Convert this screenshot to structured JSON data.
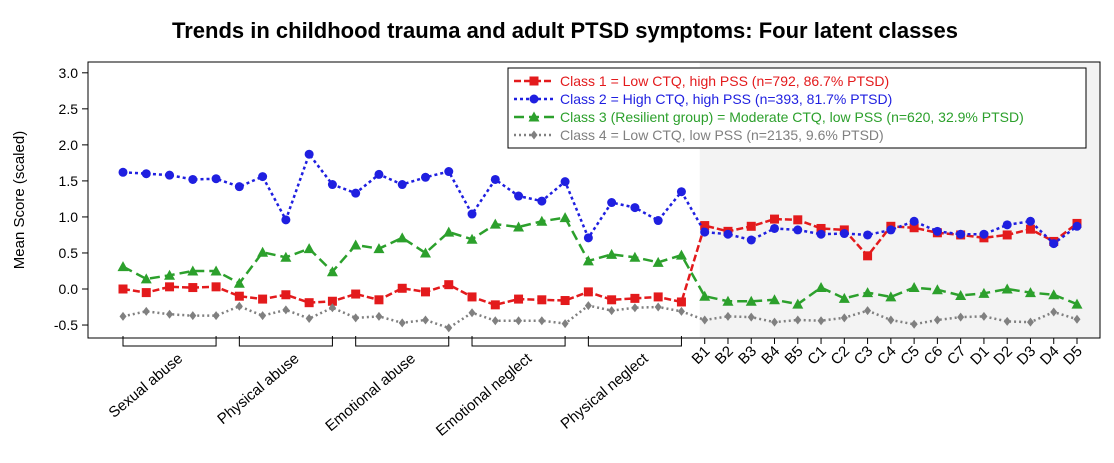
{
  "chart_data": {
    "type": "line",
    "title": "Trends in childhood trauma and adult PTSD symptoms: Four latent classes",
    "y_label": "Mean Score (scaled)",
    "categories": [
      null,
      null,
      null,
      null,
      null,
      null,
      null,
      null,
      null,
      null,
      null,
      null,
      null,
      null,
      null,
      null,
      null,
      null,
      null,
      null,
      null,
      null,
      null,
      null,
      null,
      "B1",
      "B2",
      "B3",
      "B4",
      "B5",
      "C1",
      "C2",
      "C3",
      "C4",
      "C5",
      "C6",
      "C7",
      "D1",
      "D2",
      "D3",
      "D4",
      "D5"
    ],
    "groups": [
      "Sexual abuse",
      "Physical abuse",
      "Emotional abuse",
      "Emotional neglect",
      "Physical neglect"
    ],
    "ylim": [
      -0.68,
      3.15
    ],
    "yticks": [
      -0.5,
      {
        "value": 0,
        "label": "0.0"
      },
      0.5,
      {
        "value": 1,
        "label": "1.0"
      },
      1.5,
      {
        "value": 2,
        "label": "2.0"
      },
      2.5,
      {
        "value": 3,
        "label": "3.0"
      }
    ],
    "legend": "top-right",
    "series": [
      {
        "name": "Class 1 = Low CTQ, high PSS (n=792, 86.7% PTSD)",
        "color": "#e31a1c",
        "marker": "square",
        "dash": "7,3",
        "values": [
          0.0,
          -0.05,
          0.03,
          0.02,
          0.03,
          -0.1,
          -0.14,
          -0.08,
          -0.19,
          -0.17,
          -0.07,
          -0.15,
          0.01,
          -0.04,
          0.06,
          -0.11,
          -0.22,
          -0.14,
          -0.15,
          -0.16,
          -0.04,
          -0.15,
          -0.13,
          -0.11,
          -0.18,
          0.88,
          0.8,
          0.87,
          0.97,
          0.96,
          0.84,
          0.82,
          0.46,
          0.87,
          0.85,
          0.78,
          0.75,
          0.71,
          0.75,
          0.83,
          0.66,
          0.91
        ]
      },
      {
        "name": "Class 2 = High CTQ, high PSS (n=393, 81.7% PTSD)",
        "color": "#1f1fe0",
        "marker": "circle",
        "dash": "3,3",
        "values": [
          1.62,
          1.6,
          1.58,
          1.52,
          1.53,
          1.42,
          1.56,
          0.96,
          1.87,
          1.45,
          1.33,
          1.59,
          1.45,
          1.55,
          1.63,
          1.04,
          1.52,
          1.29,
          1.22,
          1.49,
          0.71,
          1.2,
          1.13,
          0.95,
          1.35,
          0.79,
          0.76,
          0.68,
          0.84,
          0.82,
          0.76,
          0.77,
          0.75,
          0.82,
          0.94,
          0.8,
          0.76,
          0.76,
          0.89,
          0.94,
          0.63,
          0.87
        ]
      },
      {
        "name": "Class 3 (Resilient group) = Moderate CTQ, low PSS (n=620, 32.9% PTSD)",
        "color": "#2ca02c",
        "marker": "triangle",
        "dash": "10,5",
        "values": [
          0.31,
          0.14,
          0.19,
          0.25,
          0.25,
          0.08,
          0.51,
          0.44,
          0.56,
          0.24,
          0.61,
          0.56,
          0.71,
          0.5,
          0.79,
          0.69,
          0.9,
          0.86,
          0.94,
          0.99,
          0.39,
          0.48,
          0.44,
          0.37,
          0.47,
          -0.1,
          -0.17,
          -0.17,
          -0.15,
          -0.21,
          0.02,
          -0.13,
          -0.05,
          -0.11,
          0.02,
          -0.01,
          -0.09,
          -0.06,
          0.0,
          -0.05,
          -0.08,
          -0.21
        ]
      },
      {
        "name": "Class 4 = Low CTQ, low PSS (n=2135, 9.6% PTSD)",
        "color": "#808080",
        "marker": "diamond",
        "dash": "2,3",
        "values": [
          -0.38,
          -0.31,
          -0.35,
          -0.37,
          -0.37,
          -0.24,
          -0.37,
          -0.29,
          -0.41,
          -0.26,
          -0.4,
          -0.38,
          -0.47,
          -0.43,
          -0.54,
          -0.33,
          -0.44,
          -0.44,
          -0.44,
          -0.48,
          -0.23,
          -0.3,
          -0.26,
          -0.25,
          -0.31,
          -0.43,
          -0.38,
          -0.39,
          -0.46,
          -0.43,
          -0.44,
          -0.4,
          -0.3,
          -0.43,
          -0.49,
          -0.43,
          -0.39,
          -0.38,
          -0.45,
          -0.46,
          -0.32,
          -0.42
        ]
      }
    ]
  }
}
